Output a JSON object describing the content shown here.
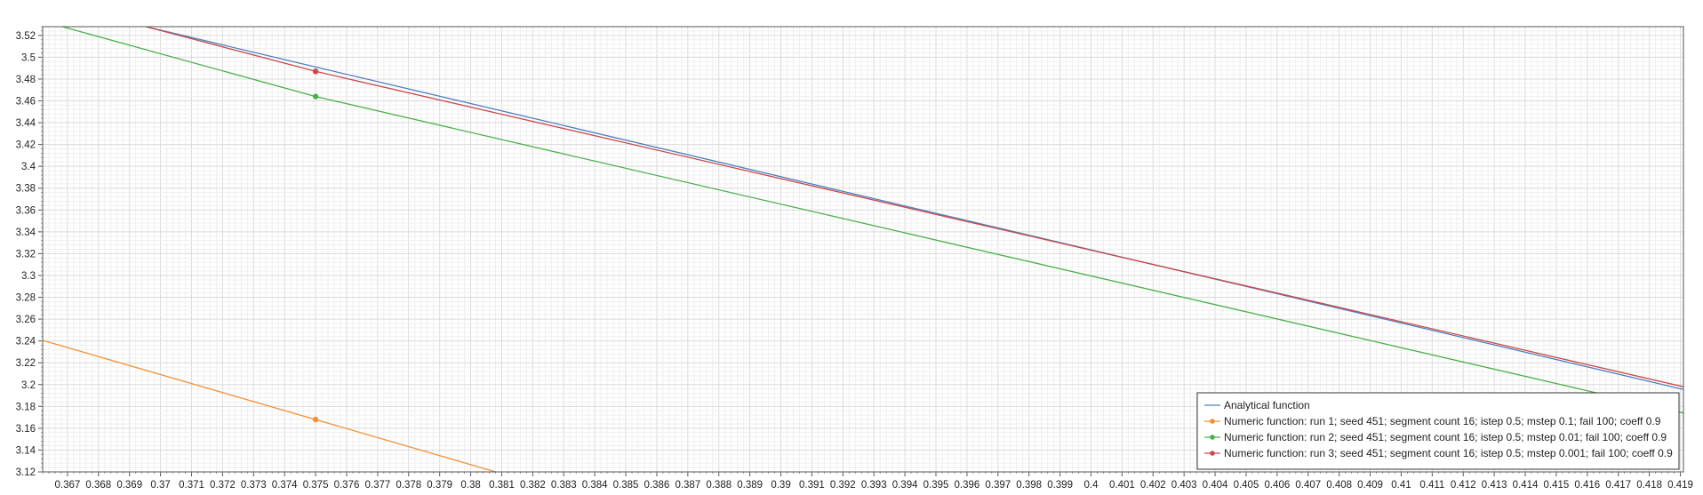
{
  "chart_data": {
    "type": "line",
    "xlim": [
      0.3662,
      0.4191
    ],
    "ylim": [
      3.12,
      3.528
    ],
    "x_ticks": [
      "0.367",
      "0.368",
      "0.369",
      "0.37",
      "0.371",
      "0.372",
      "0.373",
      "0.374",
      "0.375",
      "0.376",
      "0.377",
      "0.378",
      "0.379",
      "0.38",
      "0.381",
      "0.382",
      "0.383",
      "0.384",
      "0.385",
      "0.386",
      "0.387",
      "0.388",
      "0.389",
      "0.39",
      "0.391",
      "0.392",
      "0.393",
      "0.394",
      "0.395",
      "0.396",
      "0.397",
      "0.398",
      "0.399",
      "0.4",
      "0.401",
      "0.402",
      "0.403",
      "0.404",
      "0.405",
      "0.406",
      "0.407",
      "0.408",
      "0.409",
      "0.41",
      "0.411",
      "0.412",
      "0.413",
      "0.414",
      "0.415",
      "0.416",
      "0.417",
      "0.418",
      "0.419"
    ],
    "y_ticks": [
      "3.12",
      "3.14",
      "3.16",
      "3.18",
      "3.2",
      "3.22",
      "3.24",
      "3.26",
      "3.28",
      "3.3",
      "3.32",
      "3.34",
      "3.36",
      "3.38",
      "3.4",
      "3.42",
      "3.44",
      "3.46",
      "3.48",
      "3.5",
      "3.52"
    ],
    "grid": true,
    "legend_position": "bottom-right",
    "series": [
      {
        "name": "Analytical function",
        "color": "#4e7fc1",
        "marker": false,
        "x": [
          0.36953,
          0.375,
          0.4191
        ],
        "y": [
          3.528,
          3.491,
          3.1955
        ]
      },
      {
        "name": "Numeric function: run 1; seed 451; segment count 16; istep 0.5; mstep 0.1; fail 100; coeff 0.9",
        "color": "#f0913a",
        "marker": true,
        "x": [
          0.3662,
          0.375,
          0.3825
        ],
        "y": [
          3.2405,
          3.168,
          3.106
        ]
      },
      {
        "name": "Numeric function: run 2; seed 451; segment count 16; istep 0.5; mstep 0.01; fail 100; coeff 0.9",
        "color": "#4caf4c",
        "marker": true,
        "x": [
          0.3662,
          0.375,
          0.4191
        ],
        "y": [
          3.533,
          3.464,
          3.174
        ]
      },
      {
        "name": "Numeric function: run 3; seed 451; segment count 16; istep 0.5; mstep 0.001; fail 100; coeff 0.9",
        "color": "#c94a4a",
        "marker": true,
        "x": [
          0.36953,
          0.375,
          0.4191
        ],
        "y": [
          3.528,
          3.487,
          3.198
        ]
      }
    ],
    "markers_at_x": 0.375
  }
}
